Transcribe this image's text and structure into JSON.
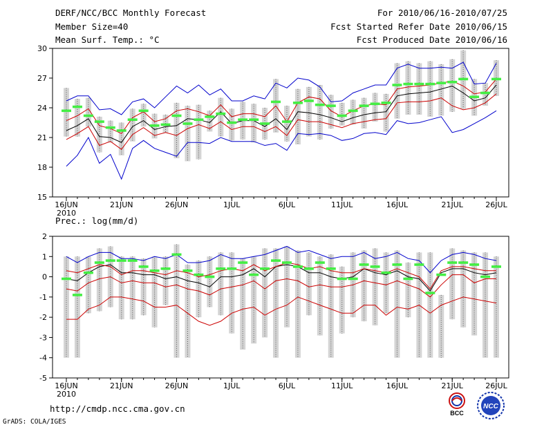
{
  "header": {
    "title": "DERF/NCC/BCC Monthly Forecast",
    "member_size": "Member Size=40",
    "variable": "Mean Surf. Temp.: °C",
    "period": "For 2010/06/16-2010/07/25",
    "started": "Fcst Started Refer Date 2010/06/15",
    "produced": "Fcst Produced Date 2010/06/16"
  },
  "footer": {
    "url": "http://cmdp.ncc.cma.gov.cn",
    "grads": "GrADS: COLA/IGES",
    "logo_left_text": "BCC",
    "logo_right_text": "NCC"
  },
  "colors": {
    "outer": "#0000cc",
    "inner": "#cc0000",
    "median": "#000000",
    "box": "#d4d4d4",
    "mean": "#44ee44"
  },
  "chart_data": [
    {
      "type": "line",
      "title": "Mean Surf. Temp.: °C",
      "x": [
        0,
        1,
        2,
        3,
        4,
        5,
        6,
        7,
        8,
        9,
        10,
        11,
        12,
        13,
        14,
        15,
        16,
        17,
        18,
        19,
        20,
        21,
        22,
        23,
        24,
        25,
        26,
        27,
        28,
        29,
        30,
        31,
        32,
        33,
        34,
        35,
        36,
        37,
        38,
        39
      ],
      "x_tick_positions": [
        0,
        5,
        10,
        15,
        20,
        25,
        30,
        35,
        39
      ],
      "x_tick_labels": [
        "16JUN",
        "21JUN",
        "26JUN",
        "1JUL",
        "6JUL",
        "11JUL",
        "16JUL",
        "21JUL",
        "26JUL"
      ],
      "x_sub_label": "2010",
      "ylim": [
        15,
        30
      ],
      "yticks": [
        15,
        18,
        21,
        24,
        27,
        30
      ],
      "series": [
        {
          "name": "max",
          "color_key": "outer",
          "values": [
            18.1,
            19.2,
            21.0,
            18.4,
            19.3,
            16.8,
            19.9,
            20.7,
            19.9,
            19.5,
            19.1,
            20.5,
            20.5,
            20.4,
            21.0,
            20.6,
            20.6,
            20.6,
            20.2,
            20.4,
            19.7,
            21.4,
            21.3,
            21.4,
            21.2,
            20.7,
            20.9,
            21.4,
            21.5,
            21.3,
            22.7,
            22.4,
            22.5,
            22.8,
            23.1,
            21.5,
            21.8,
            22.4,
            23.0,
            23.7
          ]
        },
        {
          "name": "p25",
          "color_key": "inner",
          "values": [
            20.8,
            21.4,
            22.1,
            20.2,
            20.6,
            19.8,
            21.3,
            22.0,
            21.2,
            21.5,
            21.2,
            21.9,
            22.3,
            21.9,
            22.6,
            21.8,
            22.1,
            22.1,
            21.6,
            22.1,
            21.2,
            22.8,
            22.6,
            22.6,
            22.3,
            22.0,
            22.4,
            22.6,
            22.8,
            22.9,
            24.5,
            24.6,
            24.6,
            24.7,
            25.0,
            24.2,
            23.8,
            24.0,
            24.5,
            25.4
          ]
        },
        {
          "name": "median",
          "color_key": "median",
          "values": [
            21.7,
            22.2,
            22.9,
            21.1,
            21.0,
            20.5,
            22.1,
            22.7,
            21.8,
            22.1,
            22.2,
            22.9,
            22.8,
            22.5,
            23.6,
            22.4,
            22.7,
            22.7,
            22.1,
            22.9,
            21.8,
            23.6,
            23.5,
            23.3,
            23.0,
            22.6,
            23.0,
            23.3,
            23.5,
            23.6,
            25.2,
            25.4,
            25.5,
            25.6,
            25.9,
            26.2,
            25.5,
            24.7,
            25.0,
            26.3
          ]
        },
        {
          "name": "p75",
          "color_key": "inner",
          "values": [
            22.7,
            23.2,
            23.9,
            22.2,
            21.9,
            21.4,
            23.0,
            23.6,
            22.6,
            22.9,
            23.7,
            23.9,
            23.6,
            23.2,
            24.3,
            23.1,
            23.4,
            23.4,
            23.1,
            24.2,
            22.6,
            24.5,
            25.1,
            24.9,
            23.7,
            23.1,
            23.7,
            24.2,
            24.4,
            24.3,
            25.9,
            26.1,
            26.2,
            26.3,
            26.5,
            26.7,
            26.2,
            25.4,
            25.6,
            26.9
          ]
        },
        {
          "name": "min",
          "color_key": "outer",
          "values": [
            24.7,
            25.2,
            25.2,
            23.8,
            23.9,
            23.3,
            24.6,
            24.9,
            24.0,
            25.1,
            26.2,
            25.5,
            26.3,
            25.3,
            25.9,
            24.7,
            24.7,
            25.2,
            24.9,
            26.5,
            26.0,
            27.0,
            26.8,
            26.1,
            24.6,
            24.7,
            25.5,
            25.9,
            26.3,
            26.3,
            28.0,
            28.4,
            28.0,
            28.0,
            28.1,
            28.0,
            28.6,
            26.4,
            26.5,
            28.5
          ]
        }
      ],
      "boxes": {
        "low": [
          21.1,
          21.1,
          22.1,
          19.5,
          20.5,
          19.2,
          20.6,
          22.1,
          20.9,
          21.5,
          18.9,
          18.6,
          18.8,
          21.6,
          21.1,
          20.7,
          20.8,
          20.5,
          20.8,
          21.5,
          20.6,
          20.3,
          21.1,
          20.8,
          21.9,
          22.2,
          22.3,
          21.9,
          22.6,
          21.6,
          22.9,
          23.3,
          23.3,
          23.1,
          23.2,
          23.6,
          23.9,
          23.2,
          24.2,
          25.2
        ],
        "high": [
          26.0,
          24.9,
          25.0,
          23.1,
          22.7,
          22.5,
          23.9,
          24.4,
          23.4,
          23.3,
          24.5,
          24.2,
          24.3,
          23.7,
          25.0,
          23.9,
          24.6,
          24.4,
          24.0,
          26.9,
          24.2,
          25.9,
          26.1,
          26.3,
          25.3,
          24.5,
          24.8,
          25.0,
          25.5,
          25.4,
          28.5,
          28.7,
          28.5,
          28.7,
          28.4,
          28.9,
          29.8,
          26.9,
          26.5,
          28.8
        ]
      },
      "mean_marks": [
        23.7,
        24.1,
        23.2,
        22.6,
        22.0,
        21.7,
        22.8,
        23.7,
        22.2,
        22.3,
        23.2,
        22.4,
        22.8,
        23.1,
        23.4,
        22.5,
        22.8,
        22.8,
        22.4,
        24.6,
        22.6,
        24.5,
        24.7,
        24.3,
        24.2,
        23.2,
        23.7,
        24.2,
        24.4,
        24.5,
        26.3,
        26.4,
        26.4,
        26.4,
        26.5,
        26.6,
        26.9,
        25.1,
        25.5,
        26.9
      ]
    },
    {
      "type": "line",
      "title": "Prec.: log(mm/d)",
      "x": [
        0,
        1,
        2,
        3,
        4,
        5,
        6,
        7,
        8,
        9,
        10,
        11,
        12,
        13,
        14,
        15,
        16,
        17,
        18,
        19,
        20,
        21,
        22,
        23,
        24,
        25,
        26,
        27,
        28,
        29,
        30,
        31,
        32,
        33,
        34,
        35,
        36,
        37,
        38,
        39
      ],
      "x_tick_positions": [
        0,
        5,
        10,
        15,
        20,
        25,
        30,
        35,
        39
      ],
      "x_tick_labels": [
        "16JUN",
        "21JUN",
        "26JUN",
        "1JUL",
        "6JUL",
        "11JUL",
        "16JUL",
        "21JUL",
        "26JUL"
      ],
      "x_sub_label": "2010",
      "ylim": [
        -5,
        2
      ],
      "yticks": [
        -5,
        -4,
        -3,
        -2,
        -1,
        0,
        1,
        2
      ],
      "series": [
        {
          "name": "outer_low",
          "color_key": "inner",
          "values": [
            -2.1,
            -2.1,
            -1.6,
            -1.4,
            -1.0,
            -1.0,
            -1.1,
            -1.2,
            -1.5,
            -1.5,
            -1.4,
            -1.8,
            -2.2,
            -2.4,
            -2.2,
            -1.8,
            -1.6,
            -1.5,
            -1.9,
            -1.6,
            -1.4,
            -1.0,
            -1.2,
            -1.4,
            -1.6,
            -1.8,
            -1.8,
            -1.4,
            -1.4,
            -1.9,
            -1.5,
            -1.6,
            -1.4,
            -1.8,
            -1.4,
            -1.2,
            -1.0,
            -1.1,
            -1.2,
            -1.3
          ]
        },
        {
          "name": "inner_low",
          "color_key": "inner",
          "values": [
            -0.6,
            -0.7,
            -0.3,
            -0.1,
            0.0,
            -0.3,
            -0.2,
            -0.3,
            -0.3,
            -0.5,
            -0.4,
            -0.6,
            -0.7,
            -0.9,
            -0.6,
            -0.5,
            -0.4,
            -0.2,
            -0.6,
            -0.2,
            -0.1,
            -0.2,
            -0.5,
            -0.4,
            -0.5,
            -0.5,
            -0.4,
            -0.2,
            -0.3,
            -0.4,
            -0.2,
            -0.4,
            -0.6,
            -1.0,
            -0.4,
            0.1,
            0.1,
            -0.3,
            -0.1,
            -0.1
          ]
        },
        {
          "name": "median",
          "color_key": "median",
          "values": [
            -0.1,
            -0.2,
            0.2,
            0.5,
            0.6,
            0.2,
            0.2,
            0.1,
            0.1,
            -0.1,
            0.0,
            -0.2,
            -0.3,
            -0.5,
            0.0,
            0.0,
            0.1,
            0.4,
            0.0,
            0.5,
            0.6,
            0.5,
            0.2,
            0.2,
            0.0,
            -0.1,
            0.0,
            0.4,
            0.2,
            0.1,
            0.3,
            0.0,
            -0.1,
            -0.7,
            0.2,
            0.4,
            0.4,
            0.2,
            0.1,
            0.2
          ]
        },
        {
          "name": "inner_high",
          "color_key": "inner",
          "values": [
            0.3,
            0.2,
            0.4,
            0.6,
            0.5,
            0.1,
            0.3,
            0.3,
            0.2,
            0.1,
            0.3,
            0.2,
            0.0,
            0.1,
            0.3,
            0.4,
            0.3,
            0.6,
            0.3,
            0.5,
            0.7,
            0.6,
            0.4,
            0.5,
            0.3,
            0.2,
            0.2,
            0.4,
            0.3,
            0.2,
            0.4,
            0.2,
            0.0,
            -0.6,
            0.3,
            0.5,
            0.5,
            0.4,
            0.3,
            0.3
          ]
        },
        {
          "name": "outer_high",
          "color_key": "outer",
          "values": [
            1.0,
            0.7,
            1.0,
            1.2,
            1.2,
            0.9,
            0.9,
            0.8,
            1.0,
            0.9,
            1.1,
            0.7,
            0.7,
            0.8,
            1.1,
            0.9,
            0.9,
            1.0,
            1.1,
            1.3,
            1.5,
            1.2,
            1.3,
            1.1,
            0.9,
            1.0,
            1.0,
            1.2,
            0.9,
            1.0,
            1.2,
            0.9,
            0.8,
            0.2,
            0.8,
            1.1,
            1.2,
            1.1,
            0.9,
            0.8
          ]
        }
      ],
      "boxes": {
        "low": [
          -4.0,
          -4.0,
          -1.8,
          -1.7,
          -1.5,
          -2.1,
          -2.1,
          -1.9,
          -2.5,
          -1.4,
          -4.0,
          -4.0,
          -2.0,
          -1.5,
          -1.9,
          -2.8,
          -3.6,
          -3.3,
          -3.0,
          -4.0,
          -2.5,
          -4.0,
          -1.9,
          -2.9,
          -4.0,
          -2.8,
          -2.0,
          -2.2,
          -2.4,
          -1.8,
          -4.0,
          -2.0,
          -4.0,
          -4.0,
          -4.0,
          -2.1,
          -2.5,
          -2.9,
          -4.0,
          -4.0
        ],
        "high": [
          1.0,
          1.0,
          1.0,
          1.4,
          1.5,
          1.0,
          1.0,
          0.9,
          1.0,
          1.0,
          1.6,
          0.6,
          0.8,
          1.0,
          1.2,
          1.2,
          0.9,
          1.0,
          1.4,
          1.4,
          1.5,
          1.3,
          1.2,
          1.0,
          1.1,
          0.5,
          1.2,
          1.3,
          1.4,
          1.2,
          1.3,
          0.7,
          1.2,
          1.2,
          -0.9,
          1.4,
          1.3,
          1.2,
          1.2,
          1.0
        ]
      },
      "mean_marks": [
        -0.1,
        -0.9,
        0.2,
        0.7,
        0.8,
        0.8,
        0.8,
        0.5,
        0.3,
        0.4,
        1.1,
        0.3,
        0.1,
        0.0,
        0.4,
        0.4,
        0.7,
        0.1,
        0.4,
        0.8,
        0.7,
        0.5,
        0.4,
        0.7,
        0.4,
        -0.1,
        -0.1,
        0.6,
        0.5,
        0.2,
        0.6,
        -0.1,
        0.6,
        -0.8,
        0.1,
        0.7,
        0.7,
        0.6,
        0.0,
        0.5
      ]
    }
  ]
}
